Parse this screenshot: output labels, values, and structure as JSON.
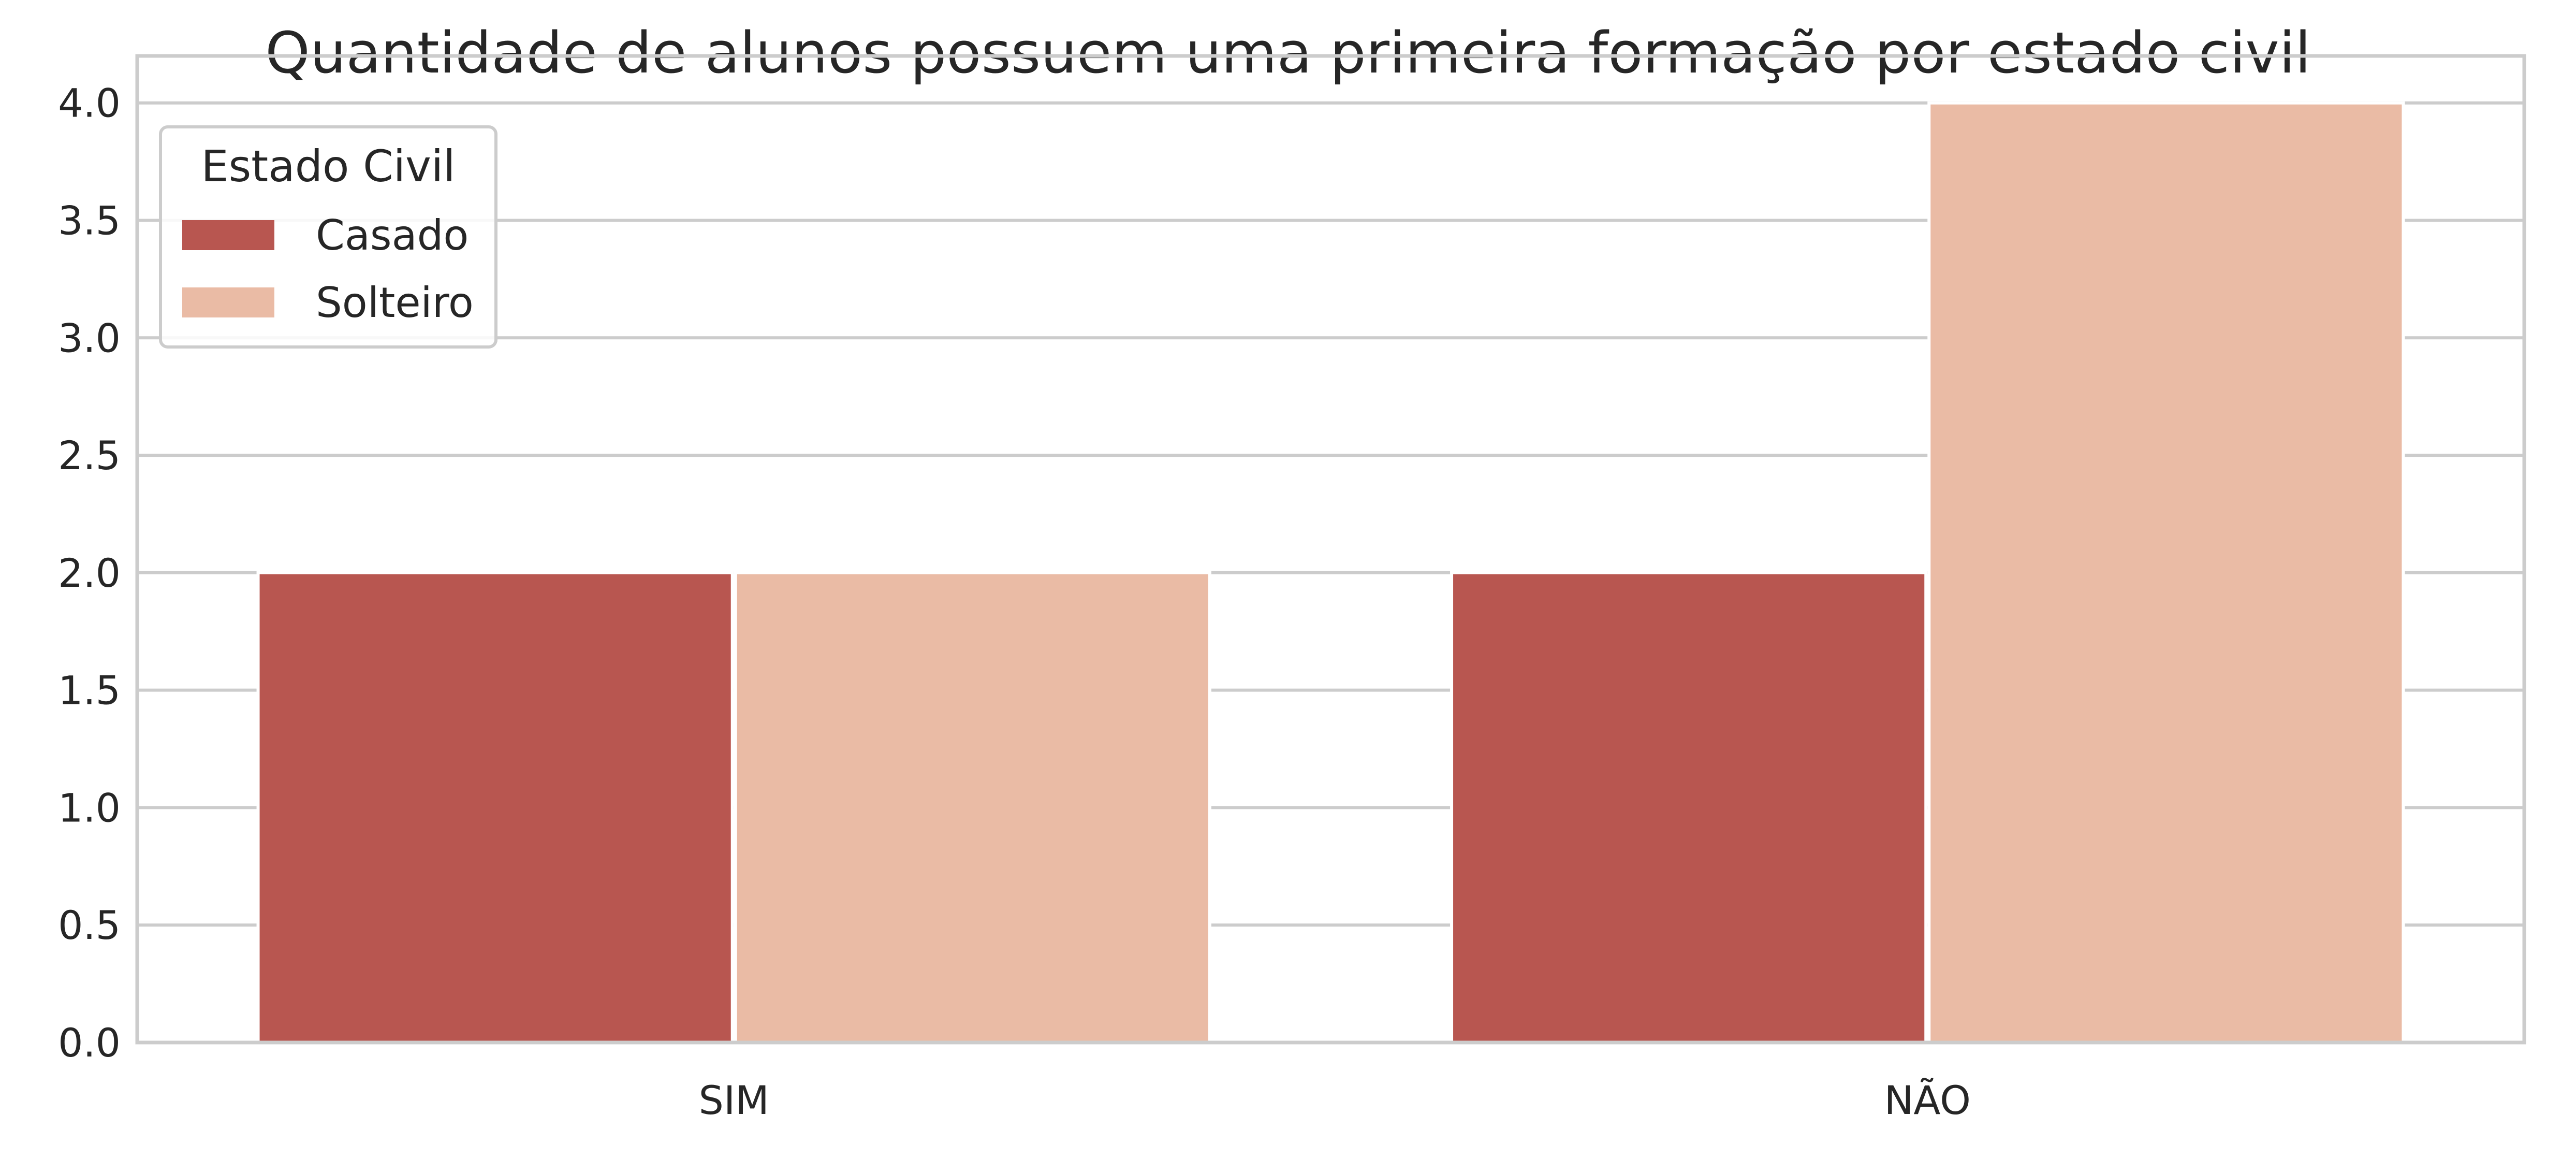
{
  "chart_data": {
    "type": "bar",
    "title": "Quantidade de alunos possuem uma primeira formação por estado civil",
    "xlabel": "",
    "ylabel": "",
    "categories": [
      "SIM",
      "NÃO"
    ],
    "series": [
      {
        "name": "Casado",
        "values": [
          2,
          2
        ],
        "color": "#b85650"
      },
      {
        "name": "Solteiro",
        "values": [
          2,
          4
        ],
        "color": "#eabba5"
      }
    ],
    "ylim": [
      0,
      4.2
    ],
    "yticks": [
      "0.0",
      "0.5",
      "1.0",
      "1.5",
      "2.0",
      "2.5",
      "3.0",
      "3.5",
      "4.0"
    ],
    "grid": "horizontal",
    "legend": {
      "title": "Estado Civil",
      "placement": "top-left"
    },
    "colors": {
      "grid": "#cccccc",
      "frame": "#cccccc",
      "text": "#262626",
      "background": "#ffffff"
    }
  }
}
